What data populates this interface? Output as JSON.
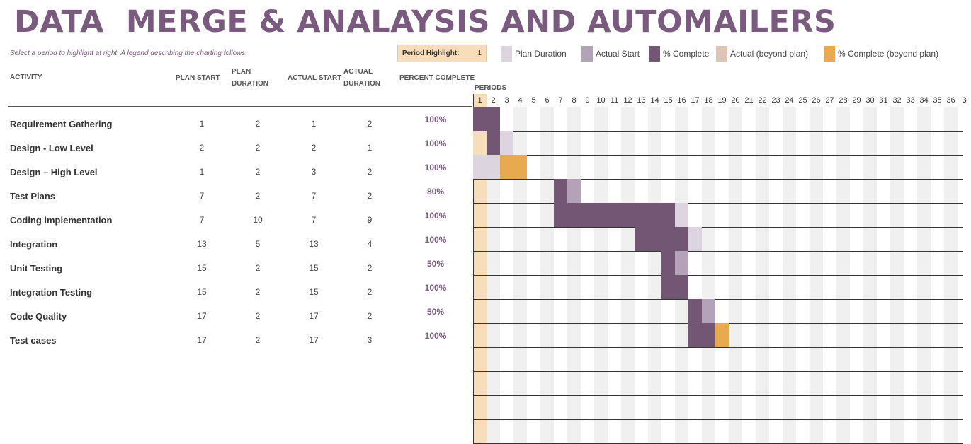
{
  "header": {
    "title": "DATA  MERGE & ANALAYSIS AND AUTOMAILERS",
    "subtitle": "Select a period to highlight at right.  A legend describing the charting follows."
  },
  "period_highlight": {
    "label": "Period Highlight:",
    "value": "1"
  },
  "legend": [
    {
      "label": "Plan Duration",
      "color": "#dcd4de"
    },
    {
      "label": "Actual Start",
      "color": "#b4a3b8"
    },
    {
      "label": "% Complete",
      "color": "#725673"
    },
    {
      "label": "Actual (beyond plan)",
      "color": "#dec4b4"
    },
    {
      "label": "% Complete (beyond plan)",
      "color": "#e7aa4e"
    }
  ],
  "columns": {
    "activity": "ACTIVITY",
    "plan_start": "PLAN START",
    "plan_duration_1": "PLAN",
    "plan_duration_2": "DURATION",
    "actual_start": "ACTUAL START",
    "actual_duration_1": "ACTUAL",
    "actual_duration_2": "DURATION",
    "percent_complete": "PERCENT COMPLETE"
  },
  "activities": [
    {
      "name": "Requirement Gathering",
      "plan_start": "1",
      "plan_duration": "2",
      "actual_start": "1",
      "actual_duration": "2",
      "percent": "100%"
    },
    {
      "name": "Design - Low Level",
      "plan_start": "2",
      "plan_duration": "2",
      "actual_start": "2",
      "actual_duration": "1",
      "percent": "100%"
    },
    {
      "name": "Design – High Level",
      "plan_start": "1",
      "plan_duration": "2",
      "actual_start": "3",
      "actual_duration": "2",
      "percent": "100%"
    },
    {
      "name": "Test Plans",
      "plan_start": "7",
      "plan_duration": "2",
      "actual_start": "7",
      "actual_duration": "2",
      "percent": "80%"
    },
    {
      "name": "Coding implementation",
      "plan_start": "7",
      "plan_duration": "10",
      "actual_start": "7",
      "actual_duration": "9",
      "percent": "100%"
    },
    {
      "name": "Integration",
      "plan_start": "13",
      "plan_duration": "5",
      "actual_start": "13",
      "actual_duration": "4",
      "percent": "100%"
    },
    {
      "name": "Unit Testing",
      "plan_start": "15",
      "plan_duration": "2",
      "actual_start": "15",
      "actual_duration": "2",
      "percent": "50%"
    },
    {
      "name": "Integration Testing",
      "plan_start": "15",
      "plan_duration": "2",
      "actual_start": "15",
      "actual_duration": "2",
      "percent": "100%"
    },
    {
      "name": "Code Quality",
      "plan_start": "17",
      "plan_duration": "2",
      "actual_start": "17",
      "actual_duration": "2",
      "percent": "50%"
    },
    {
      "name": "Test cases",
      "plan_start": "17",
      "plan_duration": "2",
      "actual_start": "17",
      "actual_duration": "3",
      "percent": "100%"
    }
  ],
  "gantt": {
    "periods_label": "PERIODS",
    "periods": [
      "1",
      "2",
      "3",
      "4",
      "5",
      "6",
      "7",
      "8",
      "9",
      "10",
      "11",
      "12",
      "13",
      "14",
      "15",
      "16",
      "17",
      "18",
      "19",
      "20",
      "21",
      "22",
      "23",
      "24",
      "25",
      "26",
      "27",
      "28",
      "29",
      "30",
      "31",
      "32",
      "33",
      "34",
      "35",
      "36",
      "3"
    ],
    "highlight_period": 1,
    "highlight_color": "#f8ddba",
    "stripe_color": "#f1f0f0",
    "bars": [
      {
        "row": 0,
        "start": 1,
        "length": 2,
        "kind": "complete"
      },
      {
        "row": 1,
        "start": 1,
        "length": 1,
        "kind": "highlight"
      },
      {
        "row": 1,
        "start": 2,
        "length": 1,
        "kind": "complete"
      },
      {
        "row": 1,
        "start": 3,
        "length": 1,
        "kind": "plan"
      },
      {
        "row": 2,
        "start": 1,
        "length": 2,
        "kind": "plan"
      },
      {
        "row": 2,
        "start": 3,
        "length": 2,
        "kind": "complete_beyond"
      },
      {
        "row": 3,
        "start": 7,
        "length": 1,
        "kind": "complete"
      },
      {
        "row": 3,
        "start": 8,
        "length": 1,
        "kind": "actual"
      },
      {
        "row": 4,
        "start": 7,
        "length": 9,
        "kind": "complete"
      },
      {
        "row": 4,
        "start": 16,
        "length": 1,
        "kind": "plan"
      },
      {
        "row": 5,
        "start": 13,
        "length": 4,
        "kind": "complete"
      },
      {
        "row": 5,
        "start": 17,
        "length": 1,
        "kind": "plan"
      },
      {
        "row": 6,
        "start": 15,
        "length": 1,
        "kind": "complete"
      },
      {
        "row": 6,
        "start": 16,
        "length": 1,
        "kind": "actual"
      },
      {
        "row": 7,
        "start": 15,
        "length": 2,
        "kind": "complete"
      },
      {
        "row": 8,
        "start": 17,
        "length": 1,
        "kind": "complete"
      },
      {
        "row": 8,
        "start": 18,
        "length": 1,
        "kind": "actual"
      },
      {
        "row": 9,
        "start": 17,
        "length": 2,
        "kind": "complete"
      },
      {
        "row": 9,
        "start": 19,
        "length": 1,
        "kind": "complete_beyond"
      }
    ]
  }
}
